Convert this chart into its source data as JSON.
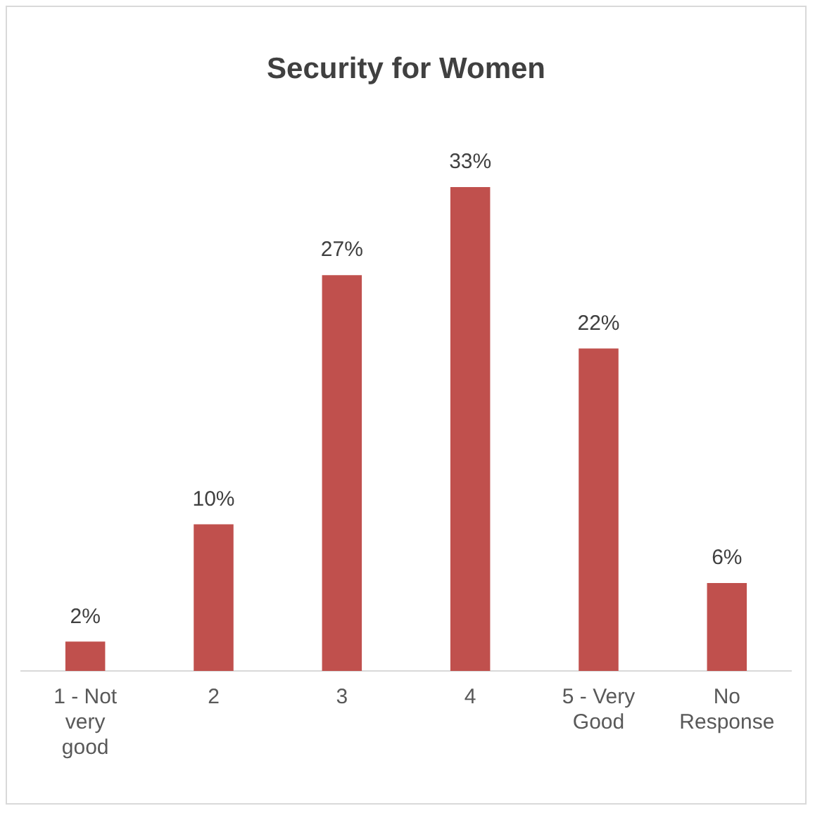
{
  "chart_data": {
    "type": "bar",
    "title": "Security for Women",
    "categories": [
      "1 - Not very good",
      "2",
      "3",
      "4",
      "5 - Very Good",
      "No Response"
    ],
    "values": [
      2,
      10,
      27,
      33,
      22,
      6
    ],
    "color": "#c0504d",
    "value_labels": [
      "2%",
      "10%",
      "27%",
      "33%",
      "22%",
      "6%"
    ],
    "tick_labels": "x",
    "grid": false,
    "legend": false
  }
}
